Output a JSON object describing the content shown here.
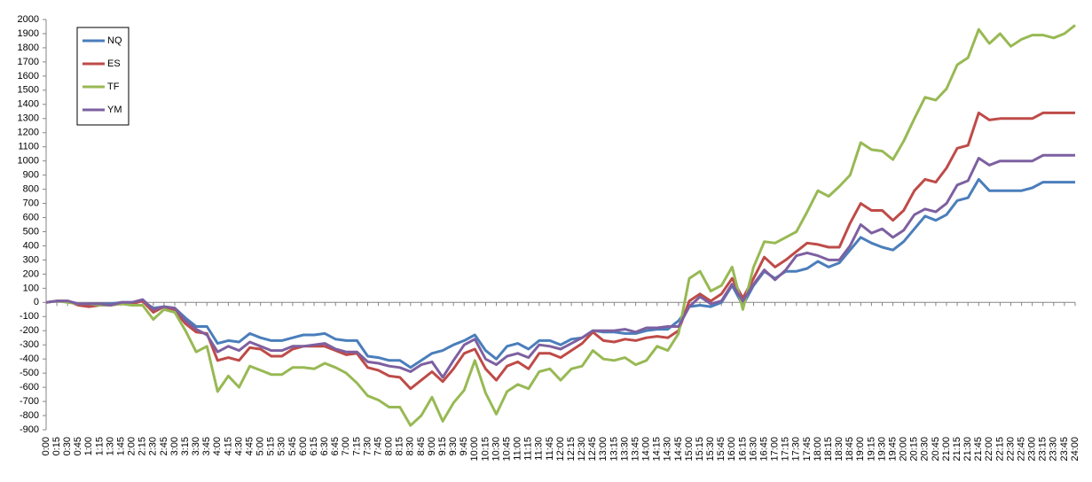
{
  "chart_data": {
    "type": "line",
    "categories": [
      "0:00",
      "0:15",
      "0:30",
      "0:45",
      "1:00",
      "1:15",
      "1:30",
      "1:45",
      "2:00",
      "2:15",
      "2:30",
      "2:45",
      "3:00",
      "3:15",
      "3:30",
      "3:45",
      "4:00",
      "4:15",
      "4:30",
      "4:45",
      "5:00",
      "5:15",
      "5:30",
      "5:45",
      "6:00",
      "6:15",
      "6:30",
      "6:45",
      "7:00",
      "7:15",
      "7:30",
      "7:45",
      "8:00",
      "8:15",
      "8:30",
      "8:45",
      "9:00",
      "9:15",
      "9:30",
      "9:45",
      "10:00",
      "10:15",
      "10:30",
      "10:45",
      "11:00",
      "11:15",
      "11:30",
      "11:45",
      "12:00",
      "12:15",
      "12:30",
      "12:45",
      "13:00",
      "13:15",
      "13:30",
      "13:45",
      "14:00",
      "14:15",
      "14:30",
      "14:45",
      "15:00",
      "15:15",
      "15:30",
      "15:45",
      "16:00",
      "16:15",
      "16:30",
      "16:45",
      "17:00",
      "17:15",
      "17:30",
      "17:45",
      "18:00",
      "18:15",
      "18:30",
      "18:45",
      "19:00",
      "19:15",
      "19:30",
      "19:45",
      "20:00",
      "20:15",
      "20:30",
      "20:45",
      "21:00",
      "21:15",
      "21:30",
      "21:45",
      "22:00",
      "22:15",
      "22:30",
      "22:45",
      "23:00",
      "23:15",
      "23:30",
      "23:45",
      "24:00"
    ],
    "series": [
      {
        "name": "NQ",
        "color": "#4a7ebb",
        "values": [
          0,
          10,
          10,
          -10,
          -10,
          -10,
          -10,
          0,
          0,
          10,
          -40,
          -30,
          -40,
          -110,
          -170,
          -170,
          -290,
          -270,
          -280,
          -220,
          -250,
          -270,
          -270,
          -250,
          -230,
          -230,
          -220,
          -260,
          -270,
          -270,
          -380,
          -390,
          -410,
          -410,
          -460,
          -410,
          -360,
          -340,
          -300,
          -270,
          -230,
          -340,
          -400,
          -310,
          -290,
          -330,
          -270,
          -270,
          -300,
          -260,
          -250,
          -200,
          -210,
          -210,
          -220,
          -220,
          -200,
          -190,
          -190,
          -130,
          -30,
          -20,
          -30,
          0,
          120,
          -20,
          120,
          220,
          170,
          220,
          220,
          240,
          290,
          250,
          280,
          370,
          460,
          420,
          390,
          370,
          430,
          520,
          610,
          580,
          620,
          720,
          740,
          870,
          790,
          790,
          790,
          790,
          810,
          850,
          850,
          850,
          850
        ]
      },
      {
        "name": "ES",
        "color": "#be4b48",
        "values": [
          0,
          10,
          10,
          -20,
          -30,
          -20,
          -20,
          -10,
          -10,
          10,
          -70,
          -30,
          -60,
          -150,
          -210,
          -220,
          -410,
          -390,
          -410,
          -320,
          -330,
          -380,
          -380,
          -330,
          -310,
          -310,
          -310,
          -340,
          -370,
          -360,
          -460,
          -480,
          -520,
          -530,
          -610,
          -550,
          -490,
          -560,
          -470,
          -360,
          -330,
          -470,
          -550,
          -450,
          -420,
          -470,
          -360,
          -360,
          -390,
          -340,
          -290,
          -210,
          -270,
          -280,
          -260,
          -270,
          -250,
          -240,
          -250,
          -200,
          10,
          60,
          10,
          60,
          170,
          30,
          170,
          320,
          250,
          300,
          360,
          420,
          410,
          390,
          390,
          560,
          700,
          650,
          650,
          580,
          650,
          790,
          870,
          850,
          950,
          1090,
          1110,
          1340,
          1290,
          1300,
          1300,
          1300,
          1300,
          1340,
          1340,
          1340,
          1340
        ]
      },
      {
        "name": "TF",
        "color": "#98b954",
        "values": [
          0,
          10,
          0,
          -10,
          -10,
          -20,
          -20,
          -10,
          -20,
          -20,
          -120,
          -50,
          -70,
          -200,
          -350,
          -310,
          -630,
          -520,
          -600,
          -450,
          -480,
          -510,
          -510,
          -460,
          -460,
          -470,
          -430,
          -460,
          -500,
          -570,
          -660,
          -690,
          -740,
          -740,
          -870,
          -800,
          -670,
          -840,
          -710,
          -620,
          -410,
          -640,
          -790,
          -630,
          -580,
          -610,
          -490,
          -470,
          -550,
          -470,
          -450,
          -340,
          -400,
          -410,
          -390,
          -440,
          -410,
          -310,
          -340,
          -220,
          170,
          220,
          80,
          120,
          250,
          -50,
          250,
          430,
          420,
          460,
          500,
          640,
          790,
          750,
          820,
          900,
          1130,
          1080,
          1070,
          1010,
          1140,
          1300,
          1450,
          1430,
          1510,
          1680,
          1730,
          1930,
          1830,
          1900,
          1810,
          1860,
          1890,
          1890,
          1870,
          1900,
          1960
        ]
      },
      {
        "name": "YM",
        "color": "#7d60a0",
        "values": [
          0,
          10,
          10,
          -10,
          -10,
          -10,
          -20,
          0,
          0,
          20,
          -50,
          -30,
          -40,
          -130,
          -190,
          -230,
          -350,
          -310,
          -340,
          -280,
          -310,
          -340,
          -340,
          -310,
          -310,
          -300,
          -290,
          -330,
          -350,
          -350,
          -420,
          -430,
          -450,
          -460,
          -490,
          -440,
          -420,
          -530,
          -410,
          -300,
          -260,
          -400,
          -440,
          -380,
          -360,
          -390,
          -300,
          -310,
          -330,
          -290,
          -250,
          -200,
          -200,
          -200,
          -190,
          -210,
          -180,
          -180,
          -170,
          -170,
          -30,
          40,
          -10,
          10,
          130,
          10,
          130,
          230,
          160,
          230,
          330,
          350,
          330,
          300,
          300,
          400,
          550,
          490,
          520,
          460,
          510,
          620,
          660,
          640,
          700,
          830,
          860,
          1020,
          970,
          1000,
          1000,
          1000,
          1000,
          1040,
          1040,
          1040,
          1040
        ]
      }
    ],
    "ylim": [
      -900,
      2000
    ],
    "yticks": [
      -900,
      -800,
      -700,
      -600,
      -500,
      -400,
      -300,
      -200,
      -100,
      0,
      100,
      200,
      300,
      400,
      500,
      600,
      700,
      800,
      900,
      1000,
      1100,
      1200,
      1300,
      1400,
      1500,
      1600,
      1700,
      1800,
      1900,
      2000
    ],
    "grid": false,
    "legend": "top-left"
  }
}
